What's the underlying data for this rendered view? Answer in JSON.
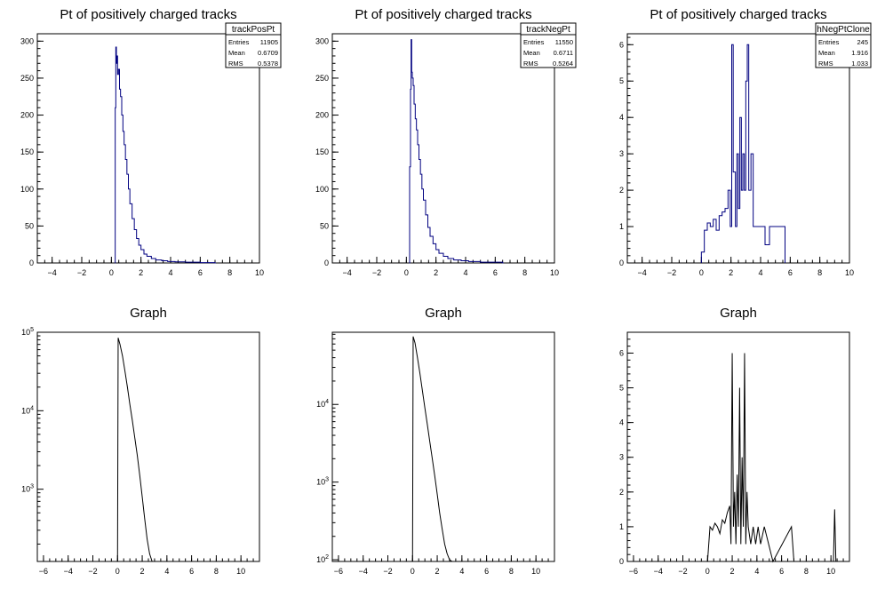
{
  "chart_data": [
    {
      "type": "histogram",
      "title": "Pt of positively charged tracks",
      "xlim": [
        -5,
        10
      ],
      "ylim": [
        0,
        310
      ],
      "log_y": false,
      "color": "#000080",
      "x_ticks": [
        -4,
        -2,
        0,
        2,
        4,
        6,
        8,
        10
      ],
      "y_ticks": [
        0,
        50,
        100,
        150,
        200,
        250,
        300
      ],
      "stats": {
        "name": "trackPosPt",
        "rows": [
          [
            "Entries",
            "11905"
          ],
          [
            "Mean",
            "0.6709"
          ],
          [
            "RMS",
            "0.5378"
          ]
        ]
      },
      "spikes": [
        [
          0.25,
          0
        ],
        [
          0.26,
          210
        ],
        [
          0.3,
          292
        ],
        [
          0.34,
          270
        ],
        [
          0.38,
          280
        ],
        [
          0.42,
          255
        ],
        [
          0.48,
          262
        ],
        [
          0.55,
          235
        ],
        [
          0.62,
          225
        ],
        [
          0.7,
          200
        ],
        [
          0.78,
          178
        ],
        [
          0.86,
          160
        ],
        [
          0.95,
          140
        ],
        [
          1.05,
          120
        ],
        [
          1.15,
          100
        ],
        [
          1.25,
          80
        ],
        [
          1.4,
          60
        ],
        [
          1.55,
          45
        ],
        [
          1.7,
          33
        ],
        [
          1.85,
          24
        ],
        [
          2.0,
          18
        ],
        [
          2.2,
          12
        ],
        [
          2.4,
          9
        ],
        [
          2.7,
          6
        ],
        [
          3.0,
          4
        ],
        [
          3.4,
          3
        ],
        [
          3.8,
          2
        ],
        [
          4.3,
          1.5
        ],
        [
          5.0,
          1
        ],
        [
          5.5,
          1
        ],
        [
          6.0,
          0.5
        ],
        [
          7.0,
          0
        ]
      ]
    },
    {
      "type": "histogram",
      "title": "Pt of positively charged tracks",
      "xlim": [
        -5,
        10
      ],
      "ylim": [
        0,
        310
      ],
      "log_y": false,
      "color": "#000080",
      "x_ticks": [
        -4,
        -2,
        0,
        2,
        4,
        6,
        8,
        10
      ],
      "y_ticks": [
        0,
        50,
        100,
        150,
        200,
        250,
        300
      ],
      "stats": {
        "name": "trackNegPt",
        "rows": [
          [
            "Entries",
            "11550"
          ],
          [
            "Mean",
            "0.6711"
          ],
          [
            "RMS",
            "0.5264"
          ]
        ]
      },
      "spikes": [
        [
          0.2,
          0
        ],
        [
          0.22,
          130
        ],
        [
          0.28,
          235
        ],
        [
          0.32,
          302
        ],
        [
          0.36,
          258
        ],
        [
          0.4,
          250
        ],
        [
          0.46,
          240
        ],
        [
          0.52,
          215
        ],
        [
          0.6,
          195
        ],
        [
          0.68,
          180
        ],
        [
          0.76,
          160
        ],
        [
          0.85,
          140
        ],
        [
          0.95,
          120
        ],
        [
          1.05,
          100
        ],
        [
          1.15,
          85
        ],
        [
          1.3,
          65
        ],
        [
          1.45,
          48
        ],
        [
          1.6,
          36
        ],
        [
          1.8,
          26
        ],
        [
          2.0,
          18
        ],
        [
          2.2,
          13
        ],
        [
          2.5,
          9
        ],
        [
          2.8,
          6
        ],
        [
          3.2,
          4
        ],
        [
          3.7,
          3
        ],
        [
          4.2,
          2
        ],
        [
          5.0,
          1
        ],
        [
          5.6,
          1
        ],
        [
          6.5,
          0
        ]
      ]
    },
    {
      "type": "histogram",
      "title": "Pt of positively charged tracks",
      "xlim": [
        -5,
        10
      ],
      "ylim": [
        0,
        6.3
      ],
      "log_y": false,
      "color": "#000080",
      "x_ticks": [
        -4,
        -2,
        0,
        2,
        4,
        6,
        8,
        10
      ],
      "y_ticks": [
        0,
        1,
        2,
        3,
        4,
        5,
        6
      ],
      "stats": {
        "name": "hNegPtClone",
        "rows": [
          [
            "Entries",
            "245"
          ],
          [
            "Mean",
            "1.916"
          ],
          [
            "RMS",
            "1.033"
          ]
        ]
      },
      "spikes": [
        [
          0.0,
          0.3
        ],
        [
          0.2,
          0.9
        ],
        [
          0.4,
          1.1
        ],
        [
          0.6,
          1.0
        ],
        [
          0.8,
          1.2
        ],
        [
          1.0,
          0.9
        ],
        [
          1.2,
          1.3
        ],
        [
          1.4,
          1.4
        ],
        [
          1.6,
          1.5
        ],
        [
          1.8,
          2.0
        ],
        [
          1.95,
          1.0
        ],
        [
          2.05,
          6.0
        ],
        [
          2.15,
          2.5
        ],
        [
          2.3,
          1.0
        ],
        [
          2.4,
          3.0
        ],
        [
          2.5,
          1.5
        ],
        [
          2.6,
          4.0
        ],
        [
          2.7,
          2.0
        ],
        [
          2.8,
          3.0
        ],
        [
          2.9,
          2.0
        ],
        [
          3.0,
          5.0
        ],
        [
          3.1,
          6.0
        ],
        [
          3.2,
          2.0
        ],
        [
          3.35,
          3.0
        ],
        [
          3.5,
          1.0
        ],
        [
          3.7,
          1.0
        ],
        [
          3.9,
          1.0
        ],
        [
          4.1,
          1.0
        ],
        [
          4.3,
          0.5
        ],
        [
          4.6,
          1.0
        ],
        [
          5.4,
          1.0
        ],
        [
          5.6,
          1.0
        ]
      ]
    },
    {
      "type": "line",
      "title": "Graph",
      "xlim": [
        -6.5,
        11.5
      ],
      "ylim": [
        120,
        100000
      ],
      "log_y": true,
      "color": "#000000",
      "x_ticks": [
        -6,
        -4,
        -2,
        0,
        2,
        4,
        6,
        8,
        10
      ],
      "y_ticks": [
        1000,
        10000,
        100000
      ],
      "y_tick_labels": [
        "10^3",
        "10^4",
        "10^5"
      ],
      "points": [
        [
          0.0,
          120
        ],
        [
          0.05,
          85000
        ],
        [
          0.2,
          70000
        ],
        [
          0.4,
          50000
        ],
        [
          0.6,
          32000
        ],
        [
          0.8,
          20000
        ],
        [
          1.0,
          12000
        ],
        [
          1.2,
          7500
        ],
        [
          1.4,
          4500
        ],
        [
          1.6,
          2700
        ],
        [
          1.8,
          1500
        ],
        [
          2.0,
          800
        ],
        [
          2.2,
          420
        ],
        [
          2.4,
          230
        ],
        [
          2.6,
          150
        ],
        [
          2.8,
          120
        ]
      ]
    },
    {
      "type": "line",
      "title": "Graph",
      "xlim": [
        -6.5,
        11.5
      ],
      "ylim": [
        95,
        85000
      ],
      "log_y": true,
      "color": "#000000",
      "x_ticks": [
        -6,
        -4,
        -2,
        0,
        2,
        4,
        6,
        8,
        10
      ],
      "y_ticks": [
        100,
        1000,
        10000
      ],
      "y_tick_labels": [
        "10^2",
        "10^3",
        "10^4"
      ],
      "points": [
        [
          0.0,
          95
        ],
        [
          0.05,
          75000
        ],
        [
          0.2,
          62000
        ],
        [
          0.4,
          40000
        ],
        [
          0.6,
          25000
        ],
        [
          0.8,
          15000
        ],
        [
          1.0,
          9000
        ],
        [
          1.2,
          5500
        ],
        [
          1.4,
          3300
        ],
        [
          1.6,
          2000
        ],
        [
          1.8,
          1200
        ],
        [
          2.0,
          700
        ],
        [
          2.2,
          400
        ],
        [
          2.4,
          250
        ],
        [
          2.6,
          160
        ],
        [
          2.8,
          120
        ],
        [
          3.0,
          100
        ],
        [
          3.2,
          95
        ]
      ]
    },
    {
      "type": "line",
      "title": "Graph",
      "xlim": [
        -6.5,
        11.5
      ],
      "ylim": [
        0,
        6.6
      ],
      "log_y": false,
      "color": "#000000",
      "x_ticks": [
        -6,
        -4,
        -2,
        0,
        2,
        4,
        6,
        8,
        10
      ],
      "y_ticks": [
        0,
        1,
        2,
        3,
        4,
        5,
        6
      ],
      "points": [
        [
          0.0,
          0
        ],
        [
          0.2,
          1.0
        ],
        [
          0.4,
          0.9
        ],
        [
          0.6,
          1.1
        ],
        [
          0.8,
          1.0
        ],
        [
          1.0,
          0.8
        ],
        [
          1.2,
          1.2
        ],
        [
          1.4,
          1.1
        ],
        [
          1.6,
          1.4
        ],
        [
          1.8,
          1.6
        ],
        [
          1.9,
          0.5
        ],
        [
          2.0,
          6.0
        ],
        [
          2.1,
          1.0
        ],
        [
          2.2,
          2.0
        ],
        [
          2.3,
          0.5
        ],
        [
          2.4,
          2.5
        ],
        [
          2.5,
          1.0
        ],
        [
          2.6,
          5.0
        ],
        [
          2.7,
          0.5
        ],
        [
          2.8,
          3.0
        ],
        [
          2.9,
          1.0
        ],
        [
          3.0,
          6.0
        ],
        [
          3.1,
          0.5
        ],
        [
          3.2,
          2.0
        ],
        [
          3.3,
          1.0
        ],
        [
          3.5,
          0.5
        ],
        [
          3.7,
          1.0
        ],
        [
          3.9,
          0.5
        ],
        [
          4.1,
          1.0
        ],
        [
          4.3,
          0.5
        ],
        [
          4.6,
          1.0
        ],
        [
          5.3,
          0
        ],
        [
          6.8,
          1.0
        ],
        [
          7.0,
          0
        ],
        [
          10.2,
          0
        ],
        [
          10.3,
          1.5
        ],
        [
          10.4,
          0
        ]
      ]
    }
  ]
}
